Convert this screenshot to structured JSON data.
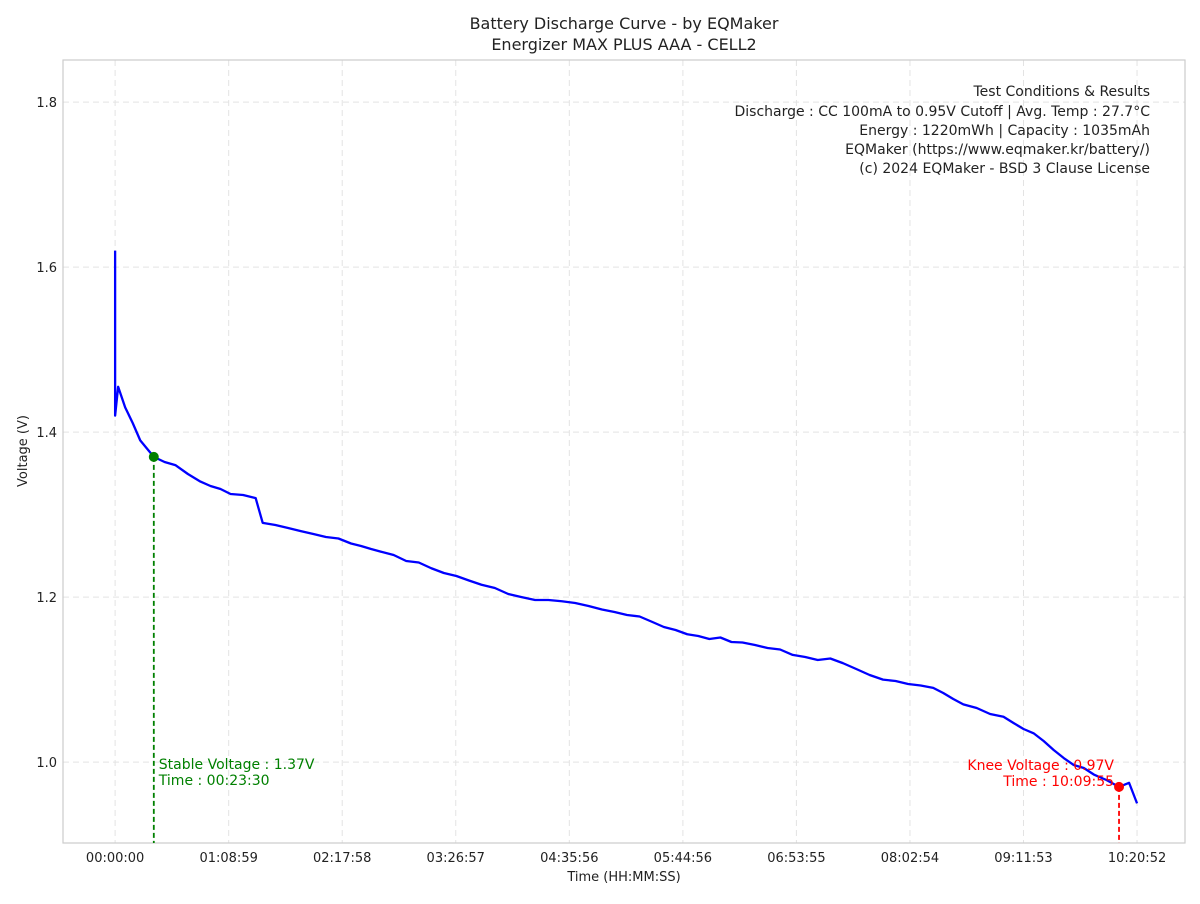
{
  "chart_data": {
    "type": "line",
    "title": "Battery Discharge Curve - by EQMaker",
    "subtitle": "Energizer MAX PLUS AAA - CELL2",
    "xlabel": "Time (HH:MM:SS)",
    "ylabel": "Voltage (V)",
    "xlim": [
      -1900,
      39000
    ],
    "ylim": [
      0.902,
      1.851
    ],
    "grid": true,
    "x_ticks": [
      0,
      4139,
      8278,
      12417,
      16556,
      20696,
      24835,
      28974,
      33113,
      37252
    ],
    "x_tick_labels": [
      "00:00:00",
      "01:08:59",
      "02:17:58",
      "03:26:57",
      "04:35:56",
      "05:44:56",
      "06:53:55",
      "08:02:54",
      "09:11:53",
      "10:20:52"
    ],
    "y_ticks": [
      1.0,
      1.2,
      1.4,
      1.6,
      1.8
    ],
    "y_tick_labels": [
      "1.0",
      "1.2",
      "1.4",
      "1.6",
      "1.8"
    ],
    "series": [
      {
        "name": "Voltage",
        "color": "#0000ff",
        "x_seconds": [
          0,
          0,
          110,
          366,
          915,
          1410,
          2195,
          3110,
          4208,
          5123,
          5379,
          6769,
          8599,
          9696,
          11526,
          13355,
          14819,
          16283,
          17746,
          19576,
          20856,
          22869,
          24698,
          26528,
          27992,
          29822,
          30919,
          32383,
          33481,
          34579,
          35676,
          36595,
          36961,
          37252
        ],
        "voltage": [
          1.62,
          1.42,
          1.455,
          1.43,
          1.39,
          1.37,
          1.36,
          1.34,
          1.325,
          1.32,
          1.29,
          1.28,
          1.265,
          1.255,
          1.235,
          1.215,
          1.2,
          1.195,
          1.185,
          1.17,
          1.155,
          1.145,
          1.13,
          1.12,
          1.1,
          1.09,
          1.07,
          1.055,
          1.035,
          1.005,
          0.985,
          0.97,
          0.975,
          0.95
        ]
      }
    ],
    "annotations": {
      "stable": {
        "x_seconds": 1410,
        "voltage": 1.37,
        "color": "#008000",
        "line1": "Stable Voltage : 1.37V",
        "line2": "Time : 00:23:30"
      },
      "knee": {
        "x_seconds": 36595,
        "voltage": 0.97,
        "color": "#ff0000",
        "line1": "Knee Voltage : 0.97V",
        "line2": "Time : 10:09:55"
      }
    },
    "info_box": [
      "Test Conditions & Results",
      "Discharge : CC 100mA to 0.95V Cutoff | Avg. Temp : 27.7°C",
      "Energy : 1220mWh | Capacity : 1035mAh",
      "EQMaker (https://www.eqmaker.kr/battery/)",
      "(c) 2024 EQMaker - BSD 3 Clause License"
    ]
  }
}
